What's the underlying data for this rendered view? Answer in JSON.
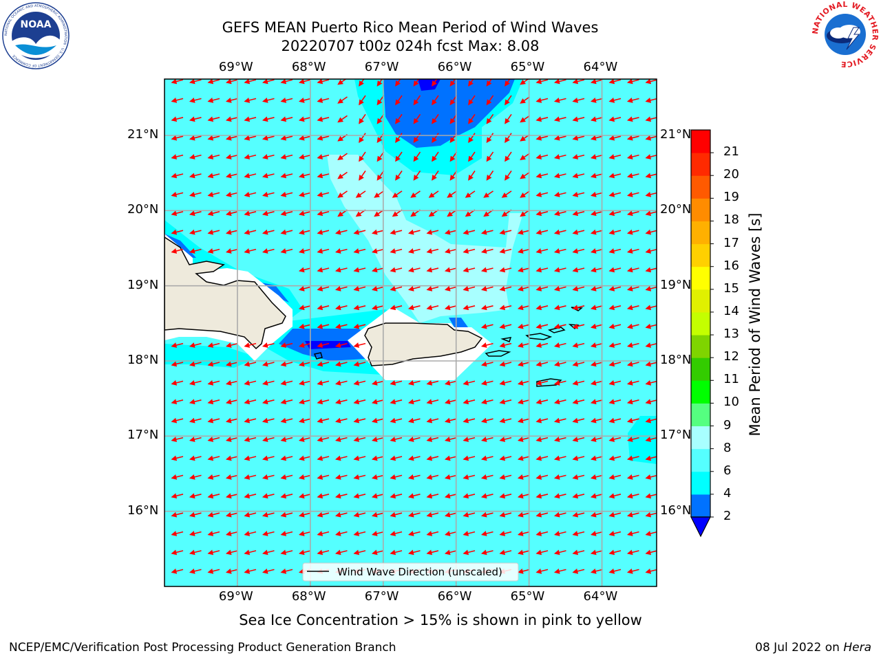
{
  "header": {
    "title_line1": "GEFS MEAN Puerto Rico Mean Period of Wind Waves",
    "title_line2": "20220707 t00z 024h fcst   Max: 8.08"
  },
  "logos": {
    "left": {
      "name": "noaa-logo",
      "text": "NOAA",
      "ring_text": "NATIONAL OCEANIC AND ATMOSPHERIC ADMINISTRATION · U.S. DEPARTMENT OF COMMERCE"
    },
    "right": {
      "name": "nws-logo",
      "ring_text": "NATIONAL WEATHER SERVICE"
    }
  },
  "map": {
    "lon_labels": [
      "69°W",
      "68°W",
      "67°W",
      "66°W",
      "65°W",
      "64°W"
    ],
    "lat_labels": [
      "21°N",
      "20°N",
      "19°N",
      "18°N",
      "17°N",
      "16°N"
    ],
    "lon_ticks": [
      -69,
      -68,
      -67,
      -66,
      -65,
      -64
    ],
    "lat_ticks": [
      21,
      20,
      19,
      18,
      17,
      16
    ],
    "extent": {
      "lon": [
        -70.0,
        -63.25
      ],
      "lat": [
        15.0,
        21.75
      ]
    },
    "background_color": "#55ffff",
    "land_color": "#eeeadc",
    "vector_color": "#ff0000",
    "grid": true,
    "legend": {
      "label": "Wind Wave Direction (unscaled)",
      "position": "bottom-center"
    }
  },
  "colorbar": {
    "label": "Mean Period of Wind Waves [s]",
    "tick_labels": [
      "2",
      "4",
      "6",
      "8",
      "9",
      "10",
      "11",
      "12",
      "13",
      "14",
      "15",
      "16",
      "17",
      "18",
      "19",
      "20",
      "21"
    ],
    "bounds": [
      2,
      4,
      6,
      8,
      9,
      10,
      11,
      12,
      13,
      14,
      15,
      16,
      17,
      18,
      19,
      20,
      21
    ],
    "colors": [
      "#0072ff",
      "#00ffff",
      "#55ffff",
      "#a8ffff",
      "#55ff80",
      "#00ff00",
      "#33cc00",
      "#7fd400",
      "#c4ff00",
      "#e0f000",
      "#ffff00",
      "#ffd000",
      "#ffb000",
      "#ff8c00",
      "#ff5a00",
      "#ff2a00",
      "#ff0000"
    ],
    "under_color": "#0000ff",
    "extend": "min"
  },
  "caption": "Sea Ice Concentration > 15% is shown in pink to yellow",
  "footer": {
    "left": "NCEP/EMC/Verification Post Processing Product Generation Branch",
    "right_date": "08 Jul 2022 on ",
    "right_machine": "Hera"
  }
}
